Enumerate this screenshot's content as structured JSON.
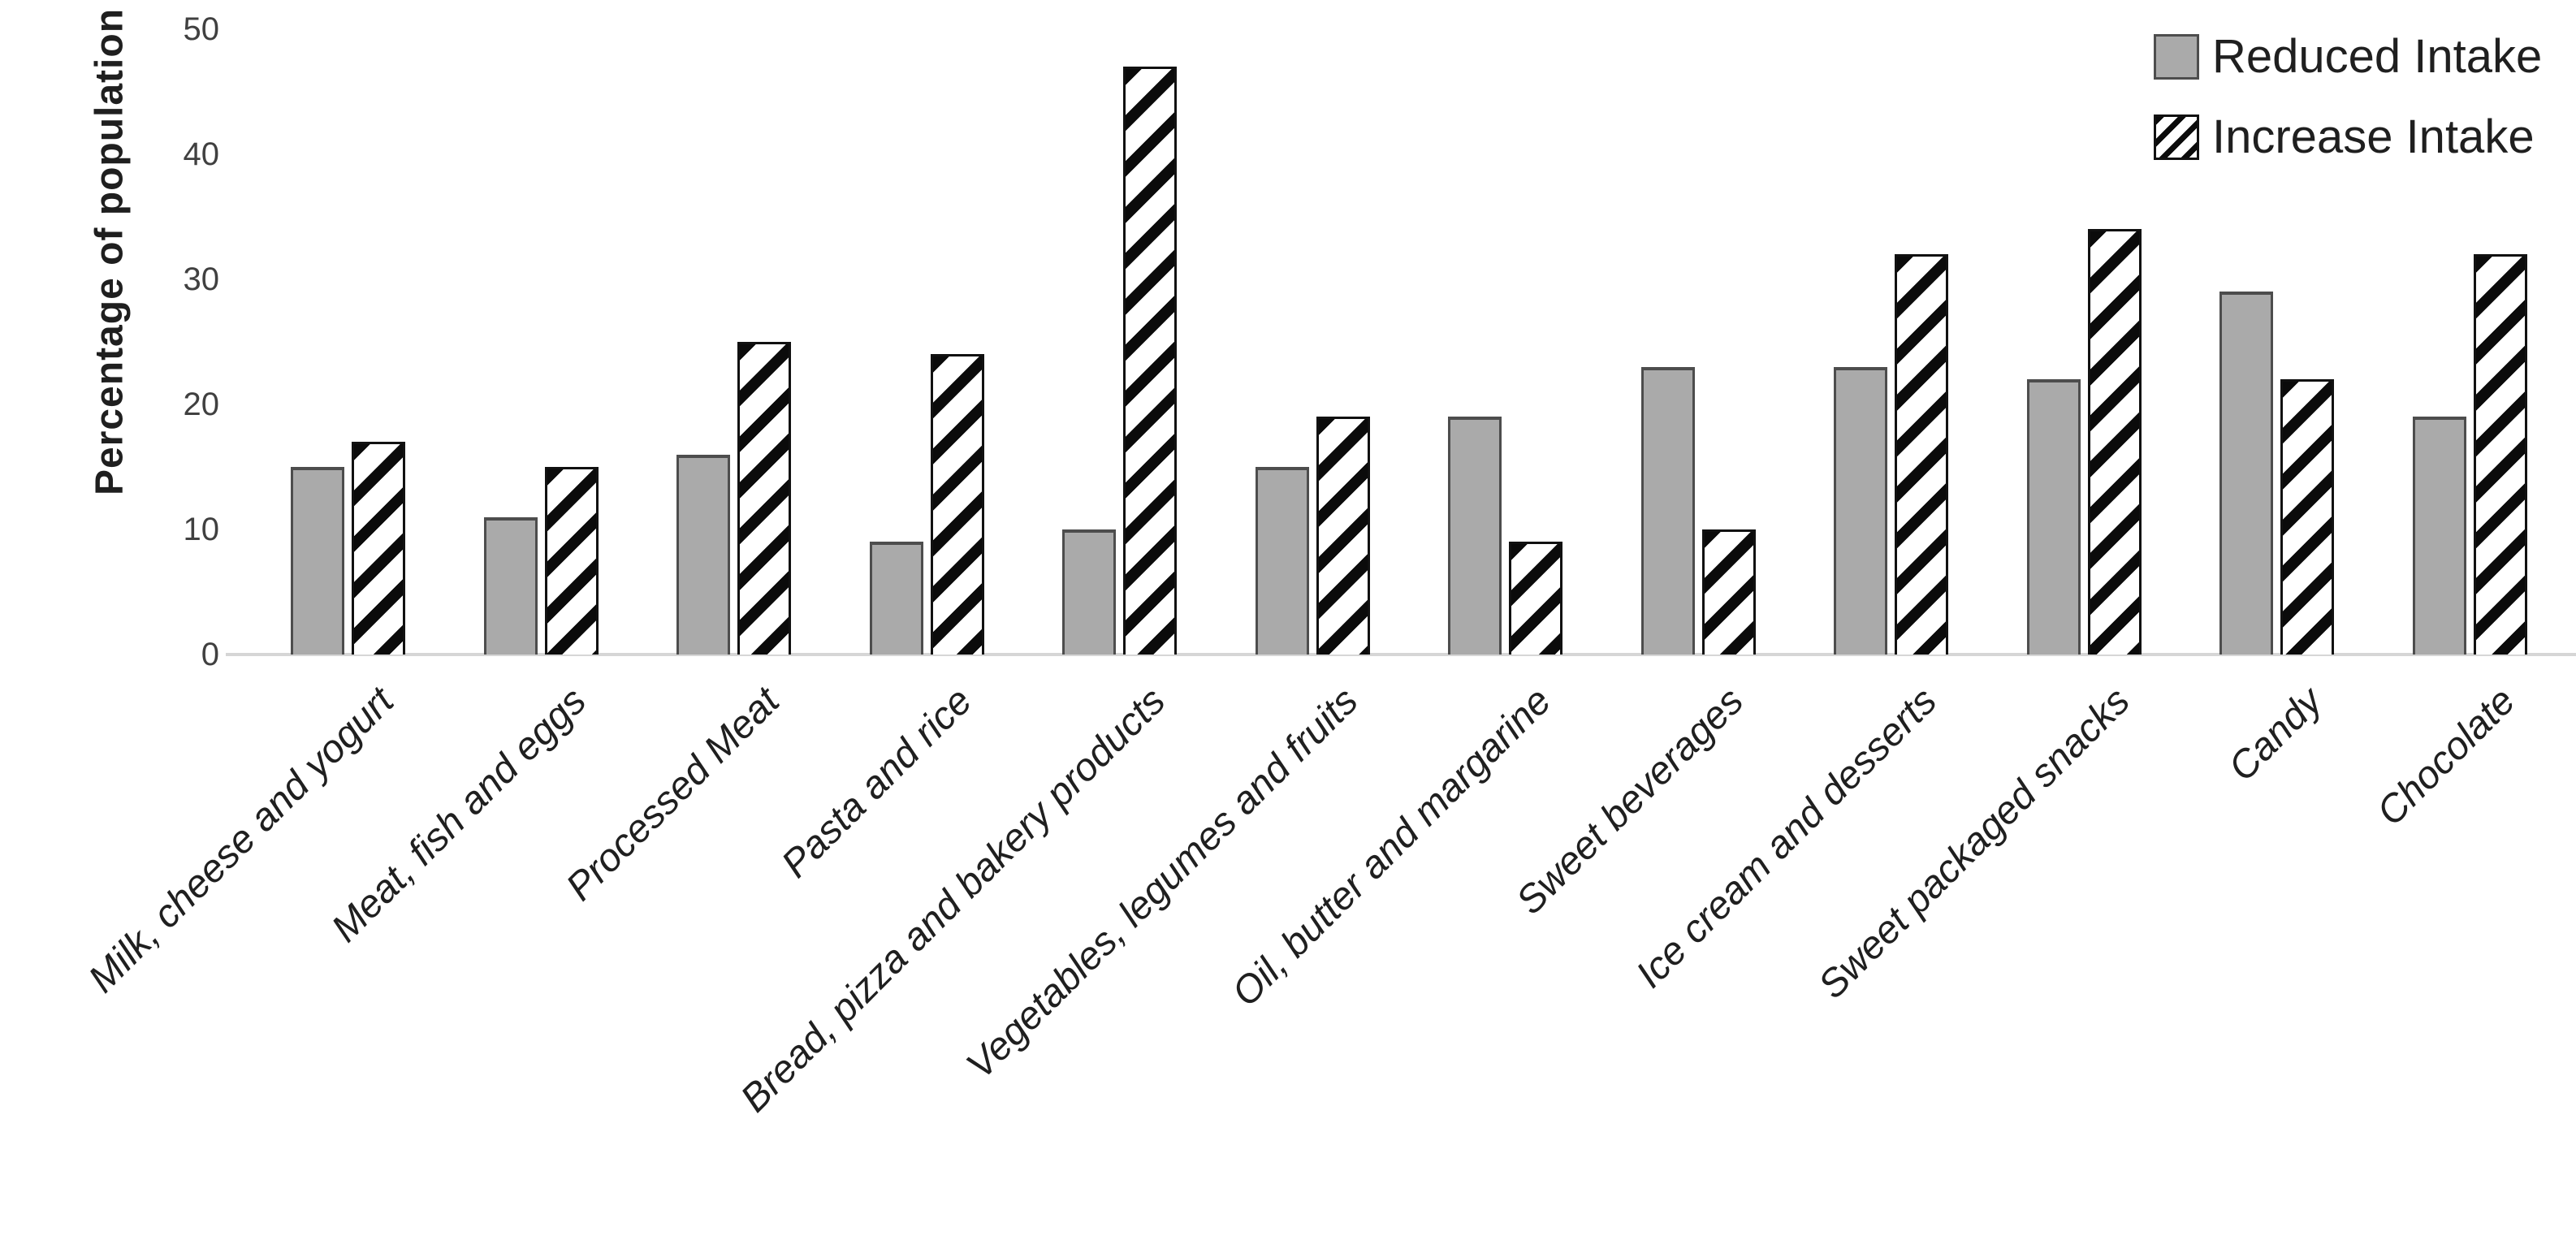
{
  "chart_data": {
    "type": "bar",
    "title": "",
    "xlabel": "",
    "ylabel": "Percentage of population",
    "ylim": [
      0,
      50
    ],
    "yticks": [
      0,
      10,
      20,
      30,
      40,
      50
    ],
    "grid": false,
    "legend_position": "top-right",
    "categories": [
      "Milk, cheese and yogurt",
      "Meat, fish and eggs",
      "Processed Meat",
      "Pasta and rice",
      "Bread, pizza and bakery products",
      "Vegetables, legumes and fruits",
      "Oil, butter and margarine",
      "Sweet beverages",
      "Ice cream and desserts",
      "Sweet packaged snacks",
      "Candy",
      "Chocolate"
    ],
    "series": [
      {
        "name": "Reduced Intake",
        "pattern": "solid-gray",
        "values": [
          15,
          11,
          16,
          9,
          10,
          15,
          19,
          23,
          23,
          22,
          29,
          19
        ]
      },
      {
        "name": "Increase Intake",
        "pattern": "diagonal-hatch",
        "values": [
          17,
          15,
          25,
          24,
          47,
          19,
          9,
          10,
          32,
          34,
          22,
          32
        ]
      }
    ]
  },
  "colors": {
    "reduced_fill": "#aaaaaa",
    "reduced_border": "#4d4d4d",
    "hatch_stripe": "#0b0b0b",
    "hatch_background": "#ffffff",
    "hatch_border": "#111111",
    "axis_line": "#d6d6d6",
    "text": "#1f1f1f"
  }
}
